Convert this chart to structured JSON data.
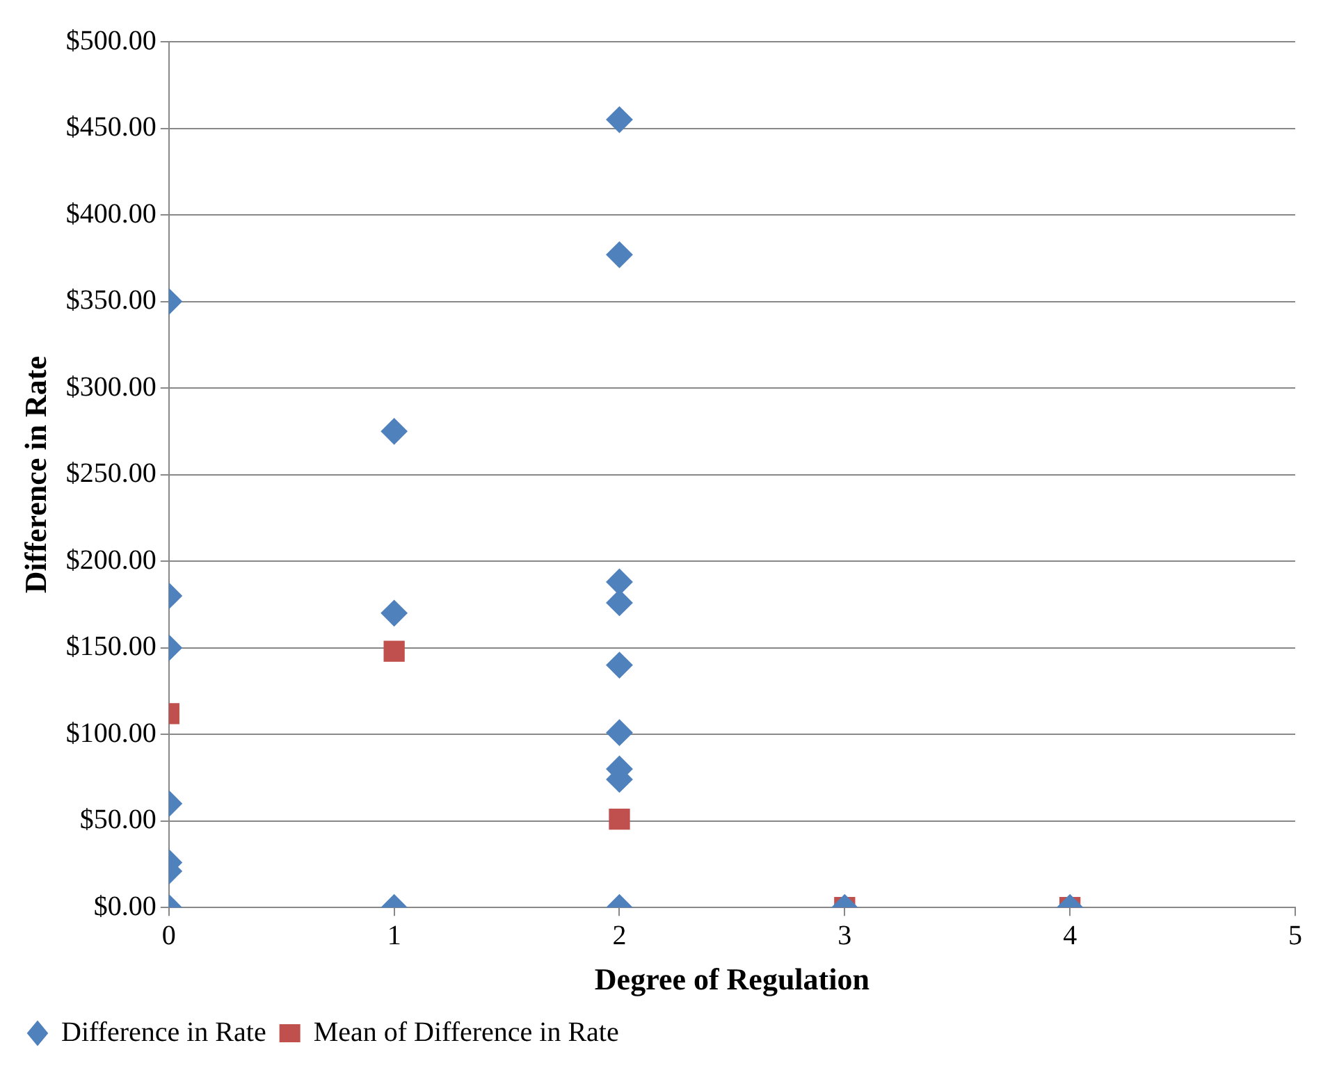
{
  "chart_data": {
    "type": "scatter",
    "xlabel": "Degree of Regulation",
    "ylabel": "Difference in Rate",
    "series": [
      {
        "name": "Difference in Rate",
        "color": "#4f81bd",
        "marker": "diamond",
        "x": [
          0,
          0,
          0,
          0,
          0,
          0,
          0,
          1,
          1,
          1,
          2,
          2,
          2,
          2,
          2,
          2,
          2,
          2,
          2,
          3,
          4
        ],
        "values": [
          350,
          180,
          150,
          60,
          26,
          21,
          0,
          275,
          170,
          0,
          455,
          377,
          188,
          176,
          140,
          101,
          80,
          74,
          0,
          0,
          0
        ]
      },
      {
        "name": "Mean of Difference in Rate",
        "color": "#c0504d",
        "marker": "square",
        "x": [
          0,
          1,
          2,
          3,
          4
        ],
        "values": [
          112,
          148,
          51,
          0,
          0
        ]
      }
    ],
    "xlim": [
      0,
      5
    ],
    "xticks": [
      0,
      1,
      2,
      3,
      4,
      5
    ],
    "ylim": [
      0,
      500
    ],
    "yticks": [
      {
        "value": 0,
        "label": "$0.00"
      },
      {
        "value": 50,
        "label": "$50.00"
      },
      {
        "value": 100,
        "label": "$100.00"
      },
      {
        "value": 150,
        "label": "$150.00"
      },
      {
        "value": 200,
        "label": "$200.00"
      },
      {
        "value": 250,
        "label": "$250.00"
      },
      {
        "value": 300,
        "label": "$300.00"
      },
      {
        "value": 350,
        "label": "$350.00"
      },
      {
        "value": 400,
        "label": "$400.00"
      },
      {
        "value": 450,
        "label": "$450.00"
      },
      {
        "value": 500,
        "label": "$500.00"
      }
    ],
    "grid": "y",
    "legend": "bottom left"
  }
}
